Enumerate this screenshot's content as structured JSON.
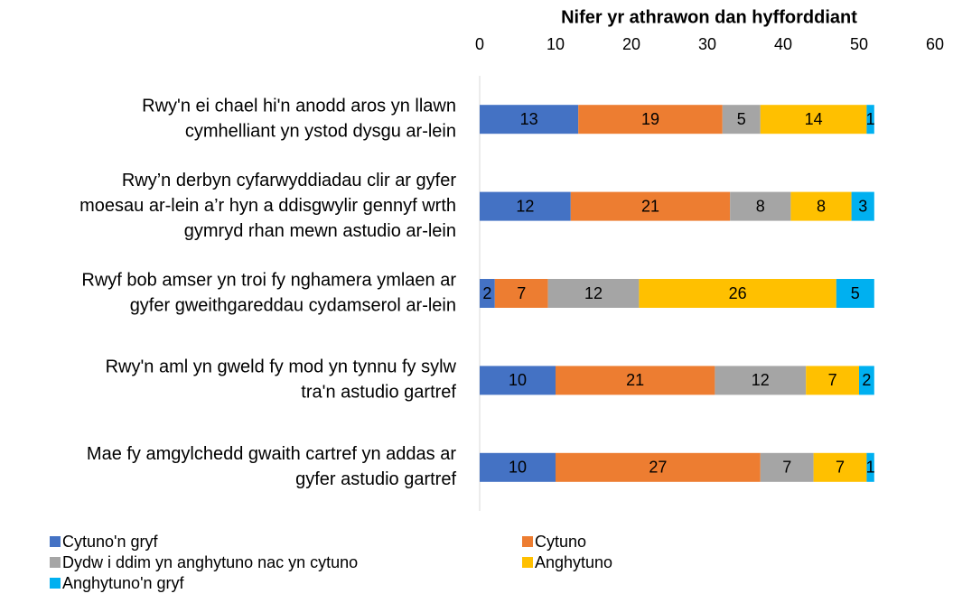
{
  "chart_data": {
    "type": "stacked-bar-horizontal",
    "title": "Nifer yr athrawon dan hyfforddiant",
    "categories": [
      [
        "Rwy'n ei chael hi'n anodd aros yn llawn",
        "cymhelliant yn ystod dysgu ar-lein"
      ],
      [
        "Rwy’n derbyn cyfarwyddiadau clir ar gyfer",
        "moesau ar-lein a’r hyn a ddisgwylir gennyf wrth",
        "gymryd rhan mewn astudio ar-lein"
      ],
      [
        "Rwyf bob amser yn troi fy nghamera ymlaen ar",
        "gyfer gweithgareddau cydamserol ar-lein"
      ],
      [
        "Rwy'n aml yn gweld fy mod yn tynnu fy sylw",
        "tra'n astudio gartref"
      ],
      [
        "Mae fy amgylchedd gwaith cartref yn addas ar",
        "gyfer astudio gartref"
      ]
    ],
    "series": [
      {
        "name": "Cytuno'n gryf",
        "color": "#4472c4",
        "values": [
          13,
          12,
          2,
          10,
          10
        ]
      },
      {
        "name": "Cytuno",
        "color": "#ed7d31",
        "values": [
          19,
          21,
          7,
          21,
          27
        ]
      },
      {
        "name": "Dydw i ddim yn anghytuno nac yn cytuno",
        "color": "#a5a5a5",
        "values": [
          5,
          8,
          12,
          12,
          7
        ]
      },
      {
        "name": "Anghytuno",
        "color": "#ffc000",
        "values": [
          14,
          8,
          26,
          7,
          7
        ]
      },
      {
        "name": "Anghytuno'n gryf",
        "color": "#00b0f0",
        "values": [
          1,
          3,
          5,
          2,
          1
        ]
      }
    ],
    "xlim": [
      0,
      60
    ],
    "xticks": [
      0,
      10,
      20,
      30,
      40,
      50,
      60
    ],
    "legend": "bottom"
  }
}
